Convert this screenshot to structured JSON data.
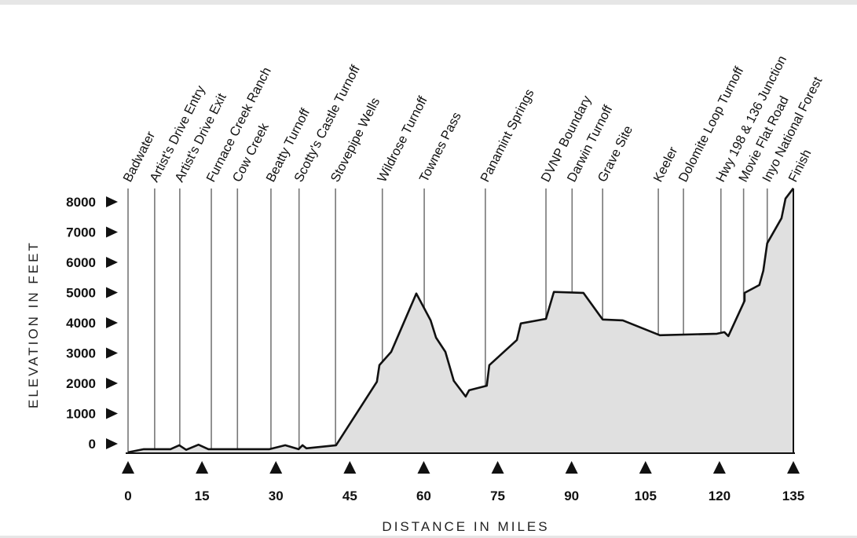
{
  "chart_data": {
    "type": "area",
    "title": "",
    "xlabel": "DISTANCE IN MILES",
    "ylabel": "ELEVATION IN FEET",
    "xlim": [
      0,
      135
    ],
    "ylim": [
      -282,
      8500
    ],
    "x_ticks": [
      0,
      15,
      30,
      45,
      60,
      75,
      90,
      105,
      120,
      135
    ],
    "y_ticks": [
      0,
      1000,
      2000,
      3000,
      4000,
      5000,
      6000,
      7000,
      8000
    ],
    "grid": false,
    "landmarks": [
      {
        "name": "Badwater",
        "mile": 0
      },
      {
        "name": "Artist's Drive Entry",
        "mile": 5.4
      },
      {
        "name": "Artist's Drive Exit",
        "mile": 10.5
      },
      {
        "name": "Furnace Creek Ranch",
        "mile": 16.9
      },
      {
        "name": "Cow Creek",
        "mile": 22.2
      },
      {
        "name": "Beatty Turnoff",
        "mile": 29.0
      },
      {
        "name": "Scotty's Castle Turnoff",
        "mile": 34.7
      },
      {
        "name": "Stovepipe Wells",
        "mile": 42.1
      },
      {
        "name": "Wildrose Turnoff",
        "mile": 51.6
      },
      {
        "name": "Townes Pass",
        "mile": 60.1
      },
      {
        "name": "Panamint Springs",
        "mile": 72.5
      },
      {
        "name": "DVNP Boundary",
        "mile": 84.8
      },
      {
        "name": "Darwin Turnoff",
        "mile": 90.1
      },
      {
        "name": "Grave Site",
        "mile": 96.3
      },
      {
        "name": "Keeler",
        "mile": 107.6
      },
      {
        "name": "Dolomite Loop Turnoff",
        "mile": 112.7
      },
      {
        "name": "Hwy 198 & 136 Junction",
        "mile": 120.3
      },
      {
        "name": "Movie Flat Road",
        "mile": 124.9
      },
      {
        "name": "Inyo National Forest",
        "mile": 129.7
      },
      {
        "name": "Finish",
        "mile": 135
      }
    ],
    "series": [
      {
        "name": "Elevation",
        "points": [
          [
            0,
            -282
          ],
          [
            3.2,
            -180
          ],
          [
            8.6,
            -180
          ],
          [
            10.4,
            -50
          ],
          [
            11.8,
            -200
          ],
          [
            14.3,
            -30
          ],
          [
            16.3,
            -180
          ],
          [
            28.7,
            -180
          ],
          [
            31.9,
            -50
          ],
          [
            34.6,
            -180
          ],
          [
            35.4,
            -50
          ],
          [
            36.2,
            -150
          ],
          [
            42.2,
            -50
          ],
          [
            50.5,
            2050
          ],
          [
            51.0,
            2600
          ],
          [
            53.4,
            3040
          ],
          [
            58.5,
            4970
          ],
          [
            61.4,
            4080
          ],
          [
            62.5,
            3510
          ],
          [
            64.4,
            3040
          ],
          [
            66.1,
            2080
          ],
          [
            68.5,
            1560
          ],
          [
            69.2,
            1770
          ],
          [
            72.8,
            1920
          ],
          [
            73.3,
            2600
          ],
          [
            78.9,
            3430
          ],
          [
            79.7,
            3980
          ],
          [
            84.8,
            4130
          ],
          [
            86.4,
            5020
          ],
          [
            92.4,
            4990
          ],
          [
            96.3,
            4110
          ],
          [
            100.4,
            4080
          ],
          [
            107.9,
            3590
          ],
          [
            119.5,
            3640
          ],
          [
            121.0,
            3690
          ],
          [
            121.8,
            3560
          ],
          [
            125.1,
            4730
          ],
          [
            125.1,
            4990
          ],
          [
            128.1,
            5250
          ],
          [
            128.9,
            5720
          ],
          [
            129.7,
            6630
          ],
          [
            132.6,
            7460
          ],
          [
            133.4,
            8110
          ],
          [
            135,
            8450
          ]
        ]
      }
    ],
    "colors": {
      "fill": "#e0e0e0",
      "line": "#111111",
      "landmark_line": "#777777"
    }
  }
}
